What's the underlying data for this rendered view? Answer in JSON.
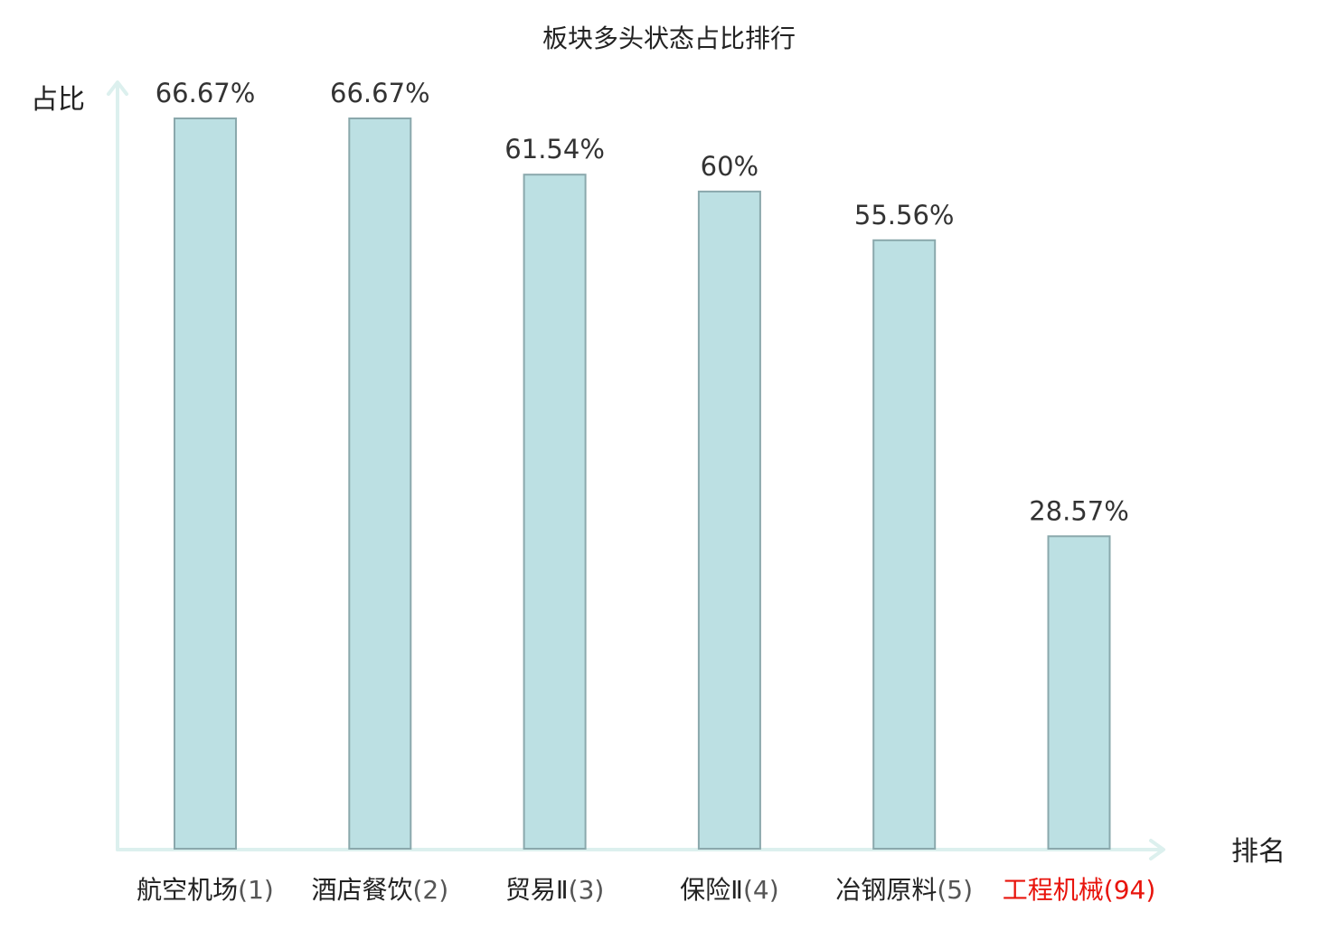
{
  "chart_data": {
    "type": "bar",
    "title": "板块多头状态占比排行",
    "xlabel": "排名",
    "ylabel": "占比",
    "ylim": [
      0,
      72
    ],
    "grid": false,
    "legend": "none",
    "bar_color": "#bce0e3",
    "bar_edge_color": "#8aa8ac",
    "axis_color": "#dcf0ee",
    "highlight_color": "#e8140c",
    "categories": [
      {
        "name": "航空机场",
        "rank": "(1)",
        "highlight": false
      },
      {
        "name": "酒店餐饮",
        "rank": "(2)",
        "highlight": false
      },
      {
        "name": "贸易Ⅱ",
        "rank": "(3)",
        "highlight": false
      },
      {
        "name": "保险Ⅱ",
        "rank": "(4)",
        "highlight": false
      },
      {
        "name": "冶钢原料",
        "rank": "(5)",
        "highlight": false
      },
      {
        "name": "工程机械",
        "rank": "(94)",
        "highlight": true
      }
    ],
    "values": [
      66.67,
      66.67,
      61.54,
      60,
      55.56,
      28.57
    ],
    "value_labels": [
      "66.67%",
      "66.67%",
      "61.54%",
      "60%",
      "55.56%",
      "28.57%"
    ]
  }
}
